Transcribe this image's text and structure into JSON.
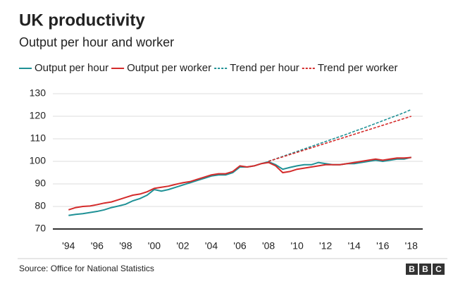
{
  "chart_data": {
    "type": "line",
    "title": "UK productivity",
    "subtitle": "Output per hour and worker",
    "source": "Source: Office for National Statistics",
    "logo": [
      "B",
      "B",
      "C"
    ],
    "x": [
      1994,
      1994.5,
      1995,
      1995.5,
      1996,
      1996.5,
      1997,
      1997.5,
      1998,
      1998.5,
      1999,
      1999.5,
      2000,
      2000.5,
      2001,
      2001.5,
      2002,
      2002.5,
      2003,
      2003.5,
      2004,
      2004.5,
      2005,
      2005.5,
      2006,
      2006.5,
      2007,
      2007.5,
      2008,
      2008.5,
      2009,
      2009.5,
      2010,
      2010.5,
      2011,
      2011.5,
      2012,
      2012.5,
      2013,
      2013.5,
      2014,
      2014.5,
      2015,
      2015.5,
      2016,
      2016.5,
      2017,
      2017.5,
      2018
    ],
    "series": [
      {
        "name": "Output per hour",
        "color": "#1f9196",
        "dashed": false,
        "values": [
          76,
          76.5,
          76.8,
          77.3,
          77.8,
          78.5,
          79.5,
          80.2,
          81,
          82.5,
          83.5,
          85,
          87.5,
          86.8,
          87.5,
          88.5,
          89.5,
          90.5,
          91.5,
          92.5,
          93.5,
          94,
          94,
          95,
          97.5,
          97.5,
          98,
          99,
          99.8,
          98.5,
          96.5,
          97.3,
          98,
          98.5,
          98.5,
          99.5,
          99,
          98.5,
          98.5,
          99,
          99,
          99.5,
          100,
          100.5,
          100,
          100.5,
          101,
          101,
          101.8
        ]
      },
      {
        "name": "Output per worker",
        "color": "#d42b2b",
        "dashed": false,
        "values": [
          78.5,
          79.5,
          80,
          80.2,
          80.8,
          81.5,
          82,
          83,
          84,
          85,
          85.5,
          86.5,
          88,
          88.5,
          89,
          89.8,
          90.5,
          91,
          92,
          93,
          94,
          94.5,
          94.5,
          95.5,
          98,
          97.5,
          98,
          99,
          99.5,
          98,
          95,
          95.5,
          96.5,
          97,
          97.5,
          98,
          98.5,
          98.5,
          98.5,
          99,
          99.5,
          100,
          100.5,
          101,
          100.5,
          101,
          101.5,
          101.5,
          101.7
        ]
      },
      {
        "name": "Trend per hour",
        "color": "#1f9196",
        "dashed": true,
        "values": [
          null,
          null,
          null,
          null,
          null,
          null,
          null,
          null,
          null,
          null,
          null,
          null,
          null,
          null,
          null,
          null,
          null,
          null,
          null,
          null,
          null,
          null,
          null,
          null,
          null,
          null,
          null,
          null,
          100,
          101.1,
          102.2,
          103.3,
          104.4,
          105.5,
          106.6,
          107.7,
          108.8,
          109.9,
          111,
          112.1,
          113.3,
          114.4,
          115.6,
          116.8,
          118,
          119.2,
          120.4,
          121.6,
          123
        ]
      },
      {
        "name": "Trend per worker",
        "color": "#d42b2b",
        "dashed": true,
        "values": [
          null,
          null,
          null,
          null,
          null,
          null,
          null,
          null,
          null,
          null,
          null,
          null,
          null,
          null,
          null,
          null,
          null,
          null,
          null,
          null,
          null,
          null,
          null,
          null,
          null,
          null,
          null,
          null,
          100,
          101,
          102,
          103,
          104,
          105,
          106,
          107,
          108,
          109,
          110,
          111,
          112,
          113,
          114,
          115,
          116,
          117,
          118,
          119,
          120
        ]
      }
    ],
    "xlim": [
      1992.9,
      2018.8
    ],
    "xticks": [
      {
        "value": 1994,
        "label": "'94"
      },
      {
        "value": 1996,
        "label": "'96"
      },
      {
        "value": 1998,
        "label": "'98"
      },
      {
        "value": 2000,
        "label": "'00"
      },
      {
        "value": 2002,
        "label": "'02"
      },
      {
        "value": 2004,
        "label": "'04"
      },
      {
        "value": 2006,
        "label": "'06"
      },
      {
        "value": 2008,
        "label": "'08"
      },
      {
        "value": 2010,
        "label": "'10"
      },
      {
        "value": 2012,
        "label": "'12"
      },
      {
        "value": 2014,
        "label": "'14"
      },
      {
        "value": 2016,
        "label": "'16"
      },
      {
        "value": 2018,
        "label": "'18"
      }
    ],
    "ylim": [
      70,
      130
    ],
    "yticks": [
      70,
      80,
      90,
      100,
      110,
      120,
      130
    ],
    "grid": true
  }
}
